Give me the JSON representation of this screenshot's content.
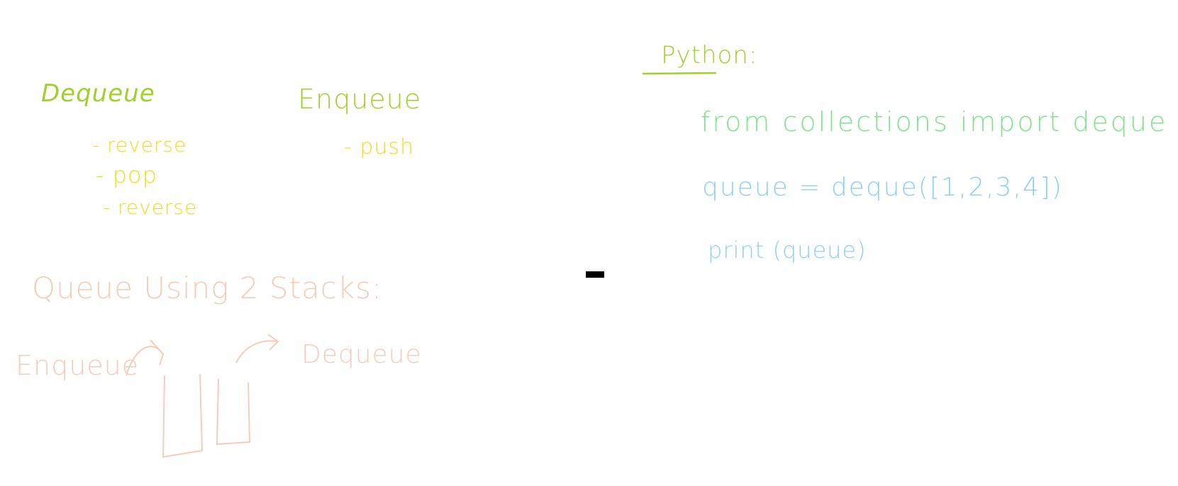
{
  "notes": {
    "left_top": {
      "dequeue_heading": "Dequeue",
      "dequeue_steps": [
        "- reverse",
        "- pop",
        "- reverse"
      ],
      "enqueue_heading": "Enqueue",
      "enqueue_steps": [
        "- push"
      ]
    },
    "stacks_section": {
      "title": "Queue Using 2 Stacks:",
      "enqueue_label": "Enqueue",
      "dequeue_label": "Dequeue"
    },
    "python_section": {
      "label": "Python:",
      "code_lines": [
        "from collections import deque",
        "queue = deque([1,2,3,4])",
        "print (queue)"
      ]
    }
  },
  "colors": {
    "green": "#9fd12d",
    "yellow": "#f0dc1a",
    "peach": "#f4cdb9",
    "mint": "#7fe38c",
    "sky": "#8fd0ef",
    "cursor": "#000000"
  }
}
